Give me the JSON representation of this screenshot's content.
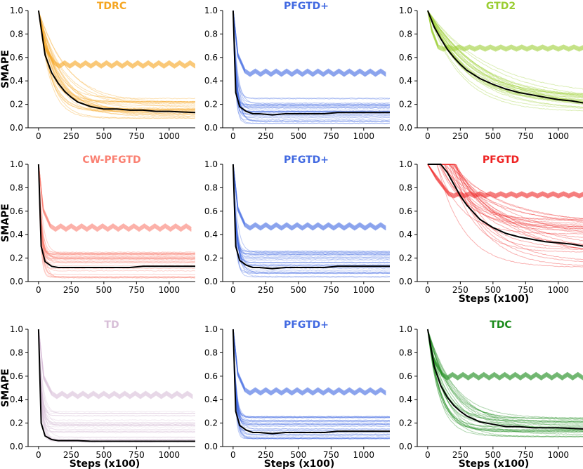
{
  "chart_data": [
    {
      "type": "line",
      "title": "TDRC",
      "color": "#f5a623",
      "ylabel": "SMAPE",
      "xlabel": "",
      "xlim": [
        -80,
        1200
      ],
      "ylim": [
        0,
        1.0
      ],
      "xticks": [
        0,
        250,
        500,
        750,
        1000
      ],
      "yticks": [
        0.0,
        0.2,
        0.4,
        0.6,
        0.8,
        1.0
      ],
      "series": [
        {
          "values_x": [
            0,
            50,
            100,
            150,
            200,
            250,
            300,
            400,
            500,
            600,
            700,
            800,
            900,
            1000,
            1100,
            1200
          ],
          "values": [
            1.0,
            0.62,
            0.47,
            0.38,
            0.31,
            0.26,
            0.22,
            0.18,
            0.16,
            0.16,
            0.15,
            0.15,
            0.14,
            0.14,
            0.135,
            0.13
          ]
        }
      ],
      "bundle": {
        "mode": "decay",
        "floor": [
          0.08,
          0.25
        ],
        "rate": [
          0.004,
          0.012
        ],
        "count": 28
      },
      "zigzag": {
        "level": 0.54,
        "start": 120,
        "amp": 0.03
      }
    },
    {
      "type": "line",
      "title": "PFGTD+",
      "color": "#4169e1",
      "ylabel": "",
      "xlabel": "",
      "xlim": [
        -80,
        1200
      ],
      "ylim": [
        0,
        1.0
      ],
      "xticks": [
        0,
        250,
        500,
        750,
        1000
      ],
      "yticks": [
        0.0,
        0.2,
        0.4,
        0.6,
        0.8,
        1.0
      ],
      "series": [
        {
          "values_x": [
            0,
            20,
            50,
            100,
            150,
            200,
            300,
            400,
            500,
            600,
            700,
            800,
            900,
            1000,
            1100,
            1200
          ],
          "values": [
            1.0,
            0.3,
            0.18,
            0.14,
            0.12,
            0.12,
            0.11,
            0.12,
            0.12,
            0.12,
            0.12,
            0.13,
            0.13,
            0.13,
            0.13,
            0.13
          ]
        }
      ],
      "bundle": {
        "mode": "fast",
        "floor": [
          0.03,
          0.26
        ],
        "rate": [
          0.03,
          0.07
        ],
        "count": 30
      },
      "zigzag": {
        "level": 0.47,
        "start": 90,
        "amp": 0.03
      }
    },
    {
      "type": "line",
      "title": "GTD2",
      "color": "#9acd32",
      "ylabel": "",
      "xlabel": "",
      "xlim": [
        -80,
        1200
      ],
      "ylim": [
        0,
        1.0
      ],
      "xticks": [
        0,
        250,
        500,
        750,
        1000
      ],
      "yticks": [
        0.0,
        0.2,
        0.4,
        0.6,
        0.8,
        1.0
      ],
      "series": [
        {
          "values_x": [
            0,
            50,
            100,
            150,
            200,
            250,
            300,
            400,
            500,
            600,
            700,
            800,
            900,
            1000,
            1100,
            1200
          ],
          "values": [
            1.0,
            0.86,
            0.76,
            0.67,
            0.6,
            0.54,
            0.49,
            0.42,
            0.37,
            0.33,
            0.3,
            0.28,
            0.26,
            0.24,
            0.23,
            0.21
          ]
        }
      ],
      "bundle": {
        "mode": "slow",
        "floor": [
          0.12,
          0.28
        ],
        "rate": [
          0.002,
          0.004
        ],
        "count": 28
      },
      "zigzag": {
        "level": 0.68,
        "start": 80,
        "amp": 0.02
      }
    },
    {
      "type": "line",
      "title": "CW-PFGTD",
      "color": "#fa8072",
      "ylabel": "SMAPE",
      "xlabel": "",
      "xlim": [
        -80,
        1200
      ],
      "ylim": [
        0,
        1.0
      ],
      "xticks": [
        0,
        250,
        500,
        750,
        1000
      ],
      "yticks": [
        0.0,
        0.2,
        0.4,
        0.6,
        0.8,
        1.0
      ],
      "series": [
        {
          "values_x": [
            0,
            20,
            50,
            100,
            150,
            200,
            300,
            400,
            500,
            600,
            700,
            800,
            900,
            1000,
            1100,
            1200
          ],
          "values": [
            1.0,
            0.3,
            0.17,
            0.13,
            0.12,
            0.12,
            0.12,
            0.12,
            0.12,
            0.12,
            0.12,
            0.13,
            0.13,
            0.13,
            0.13,
            0.13
          ]
        }
      ],
      "bundle": {
        "mode": "fast",
        "floor": [
          0.03,
          0.26
        ],
        "rate": [
          0.03,
          0.07
        ],
        "count": 30
      },
      "zigzag": {
        "level": 0.46,
        "start": 90,
        "amp": 0.03
      }
    },
    {
      "type": "line",
      "title": "PFGTD+",
      "color": "#4169e1",
      "ylabel": "",
      "xlabel": "",
      "xlim": [
        -80,
        1200
      ],
      "ylim": [
        0,
        1.0
      ],
      "xticks": [
        0,
        250,
        500,
        750,
        1000
      ],
      "yticks": [
        0.0,
        0.2,
        0.4,
        0.6,
        0.8,
        1.0
      ],
      "series": [
        {
          "values_x": [
            0,
            20,
            50,
            100,
            150,
            200,
            300,
            400,
            500,
            600,
            700,
            800,
            900,
            1000,
            1100,
            1200
          ],
          "values": [
            1.0,
            0.3,
            0.18,
            0.14,
            0.12,
            0.12,
            0.11,
            0.12,
            0.12,
            0.12,
            0.12,
            0.13,
            0.13,
            0.13,
            0.13,
            0.13
          ]
        }
      ],
      "bundle": {
        "mode": "fast",
        "floor": [
          0.03,
          0.26
        ],
        "rate": [
          0.03,
          0.07
        ],
        "count": 30
      },
      "zigzag": {
        "level": 0.47,
        "start": 90,
        "amp": 0.03
      }
    },
    {
      "type": "line",
      "title": "PFGTD",
      "color": "#ee2222",
      "ylabel": "",
      "xlabel": "Steps (x100)",
      "xlim": [
        -80,
        1200
      ],
      "ylim": [
        0,
        1.0
      ],
      "xticks": [
        0,
        250,
        500,
        750,
        1000
      ],
      "yticks": [
        0.0,
        0.2,
        0.4,
        0.6,
        0.8,
        1.0
      ],
      "series": [
        {
          "values_x": [
            0,
            100,
            150,
            200,
            250,
            300,
            400,
            500,
            600,
            700,
            800,
            900,
            1000,
            1100,
            1200
          ],
          "values": [
            1.0,
            1.0,
            0.93,
            0.83,
            0.73,
            0.65,
            0.53,
            0.46,
            0.41,
            0.38,
            0.36,
            0.34,
            0.33,
            0.32,
            0.3
          ]
        }
      ],
      "bundle": {
        "mode": "plateau",
        "floor": [
          0.12,
          0.55
        ],
        "rate": [
          0.002,
          0.006
        ],
        "count": 30
      },
      "zigzag": {
        "level": 0.74,
        "start": 160,
        "amp": 0.02
      }
    },
    {
      "type": "line",
      "title": "TD",
      "color": "#d8bfd8",
      "ylabel": "SMAPE",
      "xlabel": "Steps (x100)",
      "xlim": [
        -80,
        1200
      ],
      "ylim": [
        0,
        1.0
      ],
      "xticks": [
        0,
        250,
        500,
        750,
        1000
      ],
      "yticks": [
        0.0,
        0.2,
        0.4,
        0.6,
        0.8,
        1.0
      ],
      "series": [
        {
          "values_x": [
            0,
            20,
            50,
            100,
            150,
            200,
            300,
            400,
            500,
            600,
            700,
            800,
            900,
            1000,
            1100,
            1200
          ],
          "values": [
            1.0,
            0.2,
            0.09,
            0.06,
            0.05,
            0.05,
            0.05,
            0.045,
            0.045,
            0.045,
            0.045,
            0.045,
            0.045,
            0.045,
            0.045,
            0.045
          ]
        }
      ],
      "bundle": {
        "mode": "fast",
        "floor": [
          0.03,
          0.3
        ],
        "rate": [
          0.03,
          0.07
        ],
        "count": 30
      },
      "zigzag": {
        "level": 0.44,
        "start": 100,
        "amp": 0.03
      }
    },
    {
      "type": "line",
      "title": "PFGTD+",
      "color": "#4169e1",
      "ylabel": "",
      "xlabel": "Steps (x100)",
      "xlim": [
        -80,
        1200
      ],
      "ylim": [
        0,
        1.0
      ],
      "xticks": [
        0,
        250,
        500,
        750,
        1000
      ],
      "yticks": [
        0.0,
        0.2,
        0.4,
        0.6,
        0.8,
        1.0
      ],
      "series": [
        {
          "values_x": [
            0,
            20,
            50,
            100,
            150,
            200,
            300,
            400,
            500,
            600,
            700,
            800,
            900,
            1000,
            1100,
            1200
          ],
          "values": [
            1.0,
            0.3,
            0.18,
            0.14,
            0.12,
            0.12,
            0.11,
            0.12,
            0.12,
            0.12,
            0.12,
            0.13,
            0.13,
            0.13,
            0.13,
            0.13
          ]
        }
      ],
      "bundle": {
        "mode": "fast",
        "floor": [
          0.03,
          0.26
        ],
        "rate": [
          0.03,
          0.07
        ],
        "count": 30
      },
      "zigzag": {
        "level": 0.47,
        "start": 90,
        "amp": 0.03
      }
    },
    {
      "type": "line",
      "title": "TDC",
      "color": "#1a8a1a",
      "ylabel": "",
      "xlabel": "Steps (x100)",
      "xlim": [
        -80,
        1200
      ],
      "ylim": [
        0,
        1.0
      ],
      "xticks": [
        0,
        250,
        500,
        750,
        1000
      ],
      "yticks": [
        0.0,
        0.2,
        0.4,
        0.6,
        0.8,
        1.0
      ],
      "series": [
        {
          "values_x": [
            0,
            50,
            100,
            150,
            200,
            250,
            300,
            400,
            500,
            600,
            700,
            800,
            900,
            1000,
            1100,
            1200
          ],
          "values": [
            1.0,
            0.68,
            0.52,
            0.42,
            0.35,
            0.3,
            0.26,
            0.21,
            0.19,
            0.17,
            0.17,
            0.16,
            0.16,
            0.16,
            0.155,
            0.15
          ]
        }
      ],
      "bundle": {
        "mode": "decay",
        "floor": [
          0.08,
          0.26
        ],
        "rate": [
          0.004,
          0.012
        ],
        "count": 28
      },
      "zigzag": {
        "level": 0.6,
        "start": 110,
        "amp": 0.03
      }
    }
  ]
}
